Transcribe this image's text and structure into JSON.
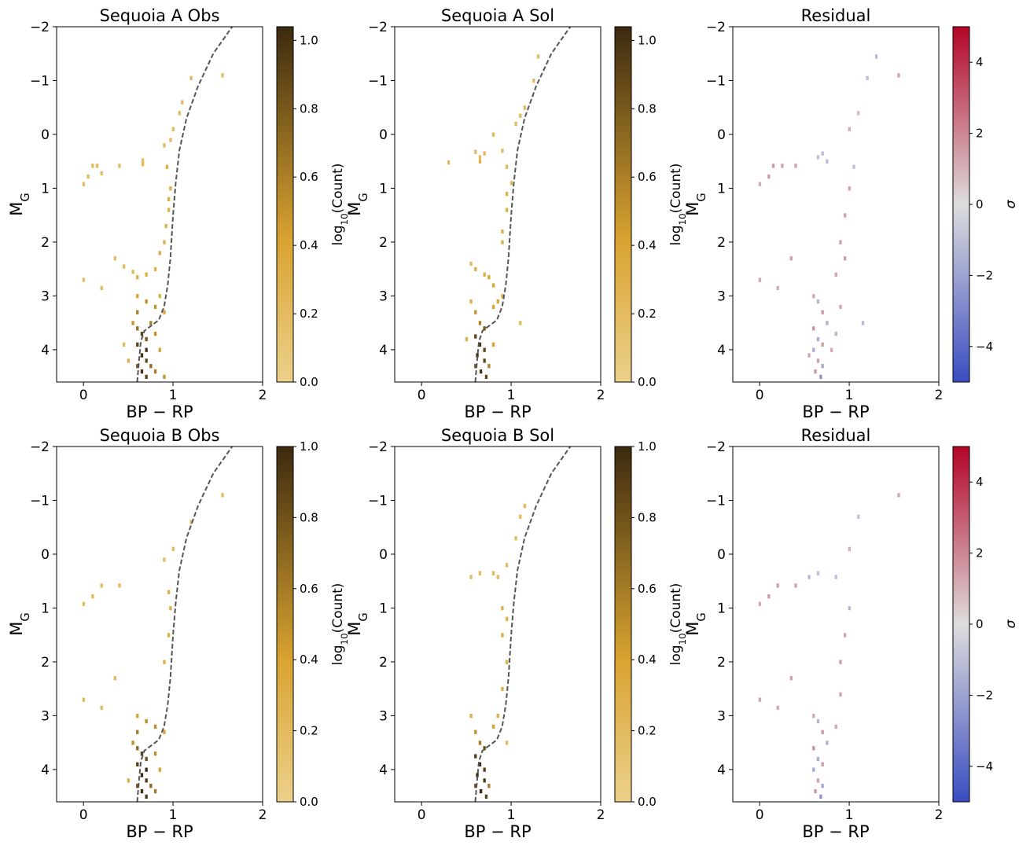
{
  "figure": {
    "xlabel": "BP − RP",
    "ylabel": "M",
    "ylabel_sub": "G",
    "cbar_count_label": "log",
    "cbar_count_label_sub": "10",
    "cbar_count_label_tail": "(Count)",
    "cbar_residual_label": "σ",
    "x_ticks": [
      "0",
      "1",
      "2"
    ],
    "y_ticks": [
      "−2",
      "−1",
      "0",
      "1",
      "2",
      "3",
      "4"
    ]
  },
  "colors": {
    "count_low": "#ecd08a",
    "count_mid": "#d9a331",
    "count_high": "#3c2a0f",
    "res_neg": "#3b4cc0",
    "res_zero": "#dddddd",
    "res_pos": "#b40426",
    "isochrone": "#555555"
  },
  "chart_data": [
    {
      "type": "heatmap",
      "title": "Sequoia A Obs",
      "row": 0,
      "col": 0,
      "xlim": [
        -0.3,
        2.0
      ],
      "ylim": [
        4.6,
        -2.0
      ],
      "colorbar": {
        "label": "log10(Count)",
        "range": [
          0.0,
          1.04
        ],
        "ticks": [
          "0.0",
          "0.2",
          "0.4",
          "0.6",
          "0.8",
          "1.0"
        ]
      },
      "bins": [
        [
          0.0,
          0.92,
          0.2
        ],
        [
          0.05,
          0.78,
          0.2
        ],
        [
          0.1,
          0.58,
          0.2
        ],
        [
          0.15,
          0.58,
          0.2
        ],
        [
          0.2,
          0.72,
          0.2
        ],
        [
          0.4,
          0.58,
          0.2
        ],
        [
          0.66,
          0.48,
          0.2
        ],
        [
          0.66,
          0.55,
          0.2
        ],
        [
          0.0,
          2.7,
          0.2
        ],
        [
          0.2,
          2.85,
          0.2
        ],
        [
          0.35,
          2.3,
          0.2
        ],
        [
          0.45,
          2.45,
          0.2
        ],
        [
          0.55,
          2.55,
          0.2
        ],
        [
          0.6,
          2.65,
          0.3
        ],
        [
          0.7,
          2.6,
          0.3
        ],
        [
          0.8,
          2.5,
          0.3
        ],
        [
          0.85,
          2.2,
          0.3
        ],
        [
          0.9,
          2.0,
          0.3
        ],
        [
          0.92,
          1.7,
          0.3
        ],
        [
          0.95,
          1.4,
          0.3
        ],
        [
          0.95,
          1.2,
          0.3
        ],
        [
          0.97,
          1.0,
          0.3
        ],
        [
          0.93,
          0.6,
          0.3
        ],
        [
          0.9,
          0.2,
          0.2
        ],
        [
          0.97,
          0.1,
          0.2
        ],
        [
          1.0,
          -0.1,
          0.2
        ],
        [
          1.07,
          -0.4,
          0.2
        ],
        [
          1.1,
          -0.6,
          0.2
        ],
        [
          1.2,
          -1.05,
          0.2
        ],
        [
          1.55,
          -1.1,
          0.2
        ],
        [
          0.6,
          3.0,
          0.4
        ],
        [
          0.7,
          3.1,
          0.5
        ],
        [
          0.8,
          3.2,
          0.5
        ],
        [
          0.9,
          3.3,
          0.4
        ],
        [
          0.85,
          3.0,
          0.3
        ],
        [
          0.6,
          3.3,
          0.6
        ],
        [
          0.55,
          3.5,
          0.5
        ],
        [
          0.6,
          3.6,
          0.7
        ],
        [
          0.65,
          3.7,
          0.9
        ],
        [
          0.7,
          3.8,
          0.8
        ],
        [
          0.6,
          3.9,
          0.9
        ],
        [
          0.7,
          4.0,
          1.0
        ],
        [
          0.65,
          4.1,
          1.0
        ],
        [
          0.7,
          4.2,
          0.9
        ],
        [
          0.6,
          4.3,
          0.8
        ],
        [
          0.75,
          4.3,
          0.7
        ],
        [
          0.65,
          4.4,
          1.0
        ],
        [
          0.7,
          4.5,
          0.9
        ],
        [
          0.8,
          4.4,
          0.6
        ],
        [
          0.5,
          4.2,
          0.3
        ],
        [
          0.85,
          4.0,
          0.4
        ],
        [
          0.8,
          3.7,
          0.5
        ],
        [
          0.9,
          4.5,
          0.5
        ],
        [
          0.45,
          3.9,
          0.2
        ],
        [
          0.75,
          3.5,
          0.6
        ]
      ]
    },
    {
      "type": "heatmap",
      "title": "Sequoia A Sol",
      "row": 0,
      "col": 1,
      "xlim": [
        -0.3,
        2.0
      ],
      "ylim": [
        4.6,
        -2.0
      ],
      "colorbar": {
        "label": "log10(Count)",
        "range": [
          0.0,
          1.04
        ],
        "ticks": [
          "0.0",
          "0.2",
          "0.4",
          "0.6",
          "0.8",
          "1.0"
        ]
      },
      "bins": [
        [
          0.3,
          0.52,
          0.2
        ],
        [
          0.6,
          0.32,
          0.2
        ],
        [
          0.65,
          0.42,
          0.2
        ],
        [
          0.65,
          0.5,
          0.3
        ],
        [
          0.7,
          0.35,
          0.2
        ],
        [
          0.8,
          0.0,
          0.2
        ],
        [
          0.9,
          0.3,
          0.2
        ],
        [
          0.95,
          0.6,
          0.2
        ],
        [
          1.0,
          0.9,
          0.2
        ],
        [
          1.05,
          -0.2,
          0.2
        ],
        [
          1.1,
          -0.35,
          0.2
        ],
        [
          1.15,
          -0.5,
          0.2
        ],
        [
          1.25,
          -1.0,
          0.2
        ],
        [
          1.3,
          -1.45,
          0.2
        ],
        [
          1.1,
          3.5,
          0.2
        ],
        [
          0.55,
          2.4,
          0.2
        ],
        [
          0.6,
          2.5,
          0.3
        ],
        [
          0.7,
          2.6,
          0.3
        ],
        [
          0.8,
          2.8,
          0.4
        ],
        [
          0.75,
          2.65,
          0.4
        ],
        [
          0.9,
          2.0,
          0.3
        ],
        [
          0.95,
          1.4,
          0.3
        ],
        [
          0.9,
          1.8,
          0.3
        ],
        [
          0.95,
          1.1,
          0.3
        ],
        [
          0.55,
          3.1,
          0.3
        ],
        [
          0.6,
          3.3,
          0.5
        ],
        [
          0.65,
          3.5,
          0.6
        ],
        [
          0.7,
          3.6,
          0.8
        ],
        [
          0.6,
          3.75,
          0.9
        ],
        [
          0.65,
          3.9,
          1.0
        ],
        [
          0.7,
          4.0,
          0.9
        ],
        [
          0.62,
          4.1,
          1.0
        ],
        [
          0.7,
          4.2,
          0.9
        ],
        [
          0.6,
          4.3,
          0.8
        ],
        [
          0.66,
          4.4,
          1.0
        ],
        [
          0.72,
          4.5,
          0.9
        ],
        [
          0.75,
          4.3,
          0.6
        ],
        [
          0.8,
          3.2,
          0.4
        ],
        [
          0.85,
          3.1,
          0.4
        ],
        [
          0.9,
          3.0,
          0.3
        ],
        [
          0.5,
          3.8,
          0.3
        ],
        [
          0.8,
          3.9,
          0.4
        ]
      ]
    },
    {
      "type": "heatmap",
      "title": "Residual",
      "row": 0,
      "col": 2,
      "xlim": [
        -0.3,
        2.0
      ],
      "ylim": [
        4.6,
        -2.0
      ],
      "colorbar": {
        "label": "σ",
        "range": [
          -5.0,
          5.0
        ],
        "ticks": [
          "−4",
          "−2",
          "0",
          "2",
          "4"
        ]
      },
      "bins": [
        [
          0.0,
          0.92,
          1.2
        ],
        [
          0.1,
          0.78,
          1.5
        ],
        [
          0.15,
          0.58,
          1.6
        ],
        [
          0.25,
          0.58,
          1.5
        ],
        [
          0.4,
          0.58,
          1.4
        ],
        [
          0.65,
          0.42,
          -1.0
        ],
        [
          0.7,
          0.35,
          -1.1
        ],
        [
          0.75,
          0.5,
          -1.2
        ],
        [
          1.0,
          -0.1,
          1.1
        ],
        [
          1.1,
          -0.4,
          0.9
        ],
        [
          1.2,
          -1.05,
          -1.0
        ],
        [
          1.3,
          -1.45,
          -1.2
        ],
        [
          1.55,
          -1.1,
          1.3
        ],
        [
          0.0,
          2.7,
          1.3
        ],
        [
          0.2,
          2.85,
          1.2
        ],
        [
          0.35,
          2.3,
          1.4
        ],
        [
          0.9,
          2.0,
          1.5
        ],
        [
          0.95,
          1.5,
          1.4
        ],
        [
          1.0,
          1.0,
          1.3
        ],
        [
          1.05,
          0.6,
          -1.0
        ],
        [
          1.15,
          3.5,
          -1.2
        ],
        [
          0.6,
          3.0,
          1.2
        ],
        [
          0.65,
          3.1,
          -1.4
        ],
        [
          0.7,
          3.3,
          1.6
        ],
        [
          0.75,
          3.5,
          -1.5
        ],
        [
          0.6,
          3.6,
          1.8
        ],
        [
          0.65,
          3.8,
          -1.6
        ],
        [
          0.7,
          3.9,
          1.5
        ],
        [
          0.6,
          4.0,
          -1.7
        ],
        [
          0.65,
          4.2,
          1.4
        ],
        [
          0.7,
          4.3,
          -1.8
        ],
        [
          0.62,
          4.4,
          1.6
        ],
        [
          0.68,
          4.5,
          -2.6
        ],
        [
          0.55,
          4.1,
          1.3
        ],
        [
          0.8,
          4.0,
          1.2
        ],
        [
          0.85,
          3.7,
          -1.3
        ],
        [
          0.9,
          3.2,
          1.2
        ],
        [
          0.85,
          2.6,
          1.4
        ],
        [
          0.95,
          2.3,
          1.5
        ]
      ]
    },
    {
      "type": "heatmap",
      "title": "Sequoia B Obs",
      "row": 1,
      "col": 0,
      "xlim": [
        -0.3,
        2.0
      ],
      "ylim": [
        4.6,
        -2.0
      ],
      "colorbar": {
        "label": "log10(Count)",
        "range": [
          0.0,
          1.0
        ],
        "ticks": [
          "0.0",
          "0.2",
          "0.4",
          "0.6",
          "0.8",
          "1.0"
        ]
      },
      "bins": [
        [
          0.0,
          0.92,
          0.2
        ],
        [
          0.1,
          0.78,
          0.2
        ],
        [
          0.2,
          0.58,
          0.2
        ],
        [
          0.4,
          0.58,
          0.2
        ],
        [
          0.9,
          0.1,
          0.2
        ],
        [
          1.0,
          -0.1,
          0.2
        ],
        [
          1.2,
          -0.6,
          0.2
        ],
        [
          1.55,
          -1.1,
          0.2
        ],
        [
          0.0,
          2.7,
          0.2
        ],
        [
          0.2,
          2.85,
          0.2
        ],
        [
          0.35,
          2.3,
          0.2
        ],
        [
          0.9,
          2.0,
          0.3
        ],
        [
          0.95,
          1.5,
          0.3
        ],
        [
          0.97,
          1.0,
          0.3
        ],
        [
          0.95,
          0.7,
          0.3
        ],
        [
          0.6,
          3.0,
          0.4
        ],
        [
          0.7,
          3.1,
          0.5
        ],
        [
          0.8,
          3.2,
          0.5
        ],
        [
          0.9,
          3.3,
          0.4
        ],
        [
          0.6,
          3.3,
          0.6
        ],
        [
          0.55,
          3.5,
          0.5
        ],
        [
          0.6,
          3.6,
          0.7
        ],
        [
          0.65,
          3.7,
          0.9
        ],
        [
          0.7,
          3.8,
          0.8
        ],
        [
          0.6,
          3.9,
          0.9
        ],
        [
          0.7,
          4.0,
          1.0
        ],
        [
          0.65,
          4.1,
          1.0
        ],
        [
          0.7,
          4.2,
          0.9
        ],
        [
          0.6,
          4.3,
          0.8
        ],
        [
          0.75,
          4.3,
          0.7
        ],
        [
          0.65,
          4.4,
          1.0
        ],
        [
          0.7,
          4.5,
          0.9
        ],
        [
          0.8,
          4.4,
          0.6
        ],
        [
          0.5,
          4.2,
          0.3
        ],
        [
          0.85,
          4.0,
          0.4
        ],
        [
          0.8,
          3.7,
          0.5
        ]
      ]
    },
    {
      "type": "heatmap",
      "title": "Sequoia B Sol",
      "row": 1,
      "col": 1,
      "xlim": [
        -0.3,
        2.0
      ],
      "ylim": [
        4.6,
        -2.0
      ],
      "colorbar": {
        "label": "log10(Count)",
        "range": [
          0.0,
          1.0
        ],
        "ticks": [
          "0.0",
          "0.2",
          "0.4",
          "0.6",
          "0.8",
          "1.0"
        ]
      },
      "bins": [
        [
          0.55,
          0.42,
          0.2
        ],
        [
          0.65,
          0.35,
          0.2
        ],
        [
          0.8,
          0.35,
          0.2
        ],
        [
          0.85,
          0.42,
          0.2
        ],
        [
          0.95,
          0.2,
          0.2
        ],
        [
          1.05,
          -0.3,
          0.2
        ],
        [
          1.1,
          -0.7,
          0.2
        ],
        [
          1.15,
          -0.9,
          0.2
        ],
        [
          0.95,
          3.5,
          0.2
        ],
        [
          0.9,
          1.5,
          0.3
        ],
        [
          0.95,
          1.2,
          0.3
        ],
        [
          0.9,
          1.0,
          0.3
        ],
        [
          0.95,
          2.0,
          0.3
        ],
        [
          0.9,
          2.5,
          0.3
        ],
        [
          0.55,
          3.0,
          0.3
        ],
        [
          0.6,
          3.3,
          0.5
        ],
        [
          0.65,
          3.5,
          0.6
        ],
        [
          0.7,
          3.6,
          0.8
        ],
        [
          0.6,
          3.75,
          0.9
        ],
        [
          0.65,
          3.9,
          1.0
        ],
        [
          0.7,
          4.0,
          0.9
        ],
        [
          0.62,
          4.1,
          1.0
        ],
        [
          0.7,
          4.2,
          0.9
        ],
        [
          0.6,
          4.3,
          0.8
        ],
        [
          0.66,
          4.4,
          1.0
        ],
        [
          0.72,
          4.5,
          0.9
        ],
        [
          0.75,
          4.3,
          0.6
        ],
        [
          0.8,
          3.2,
          0.4
        ],
        [
          0.85,
          3.0,
          0.3
        ]
      ]
    },
    {
      "type": "heatmap",
      "title": "Residual",
      "row": 1,
      "col": 2,
      "xlim": [
        -0.3,
        2.0
      ],
      "ylim": [
        4.6,
        -2.0
      ],
      "colorbar": {
        "label": "σ",
        "range": [
          -5.0,
          5.0
        ],
        "ticks": [
          "−4",
          "−2",
          "0",
          "2",
          "4"
        ]
      },
      "bins": [
        [
          0.0,
          0.92,
          1.2
        ],
        [
          0.1,
          0.78,
          1.5
        ],
        [
          0.2,
          0.58,
          1.4
        ],
        [
          0.4,
          0.58,
          1.4
        ],
        [
          0.55,
          0.42,
          -1.2
        ],
        [
          0.65,
          0.35,
          -1.0
        ],
        [
          0.85,
          0.42,
          -1.1
        ],
        [
          1.0,
          -0.1,
          1.1
        ],
        [
          1.1,
          -0.7,
          -1.0
        ],
        [
          1.55,
          -1.1,
          1.3
        ],
        [
          0.0,
          2.7,
          1.3
        ],
        [
          0.2,
          2.85,
          1.2
        ],
        [
          0.35,
          2.3,
          1.4
        ],
        [
          0.9,
          2.0,
          1.5
        ],
        [
          0.95,
          1.5,
          1.4
        ],
        [
          1.0,
          1.0,
          -1.2
        ],
        [
          0.6,
          3.0,
          1.2
        ],
        [
          0.65,
          3.1,
          -1.4
        ],
        [
          0.7,
          3.3,
          1.6
        ],
        [
          0.75,
          3.5,
          -1.5
        ],
        [
          0.6,
          3.6,
          1.8
        ],
        [
          0.65,
          3.8,
          -1.6
        ],
        [
          0.7,
          3.9,
          1.5
        ],
        [
          0.6,
          4.0,
          -1.7
        ],
        [
          0.65,
          4.2,
          1.4
        ],
        [
          0.7,
          4.3,
          -1.8
        ],
        [
          0.62,
          4.4,
          1.6
        ],
        [
          0.68,
          4.5,
          -2.6
        ],
        [
          0.85,
          3.2,
          1.2
        ],
        [
          0.9,
          2.6,
          1.4
        ]
      ]
    }
  ],
  "isochrone": {
    "label": "isochrone",
    "points": [
      [
        0.6,
        4.6
      ],
      [
        0.62,
        4.2
      ],
      [
        0.64,
        3.85
      ],
      [
        0.68,
        3.65
      ],
      [
        0.76,
        3.55
      ],
      [
        0.84,
        3.45
      ],
      [
        0.9,
        3.2
      ],
      [
        0.94,
        2.8
      ],
      [
        0.97,
        2.3
      ],
      [
        1.0,
        1.5
      ],
      [
        1.03,
        0.9
      ],
      [
        1.07,
        0.3
      ],
      [
        1.15,
        -0.3
      ],
      [
        1.28,
        -0.9
      ],
      [
        1.45,
        -1.5
      ],
      [
        1.66,
        -2.0
      ]
    ]
  }
}
